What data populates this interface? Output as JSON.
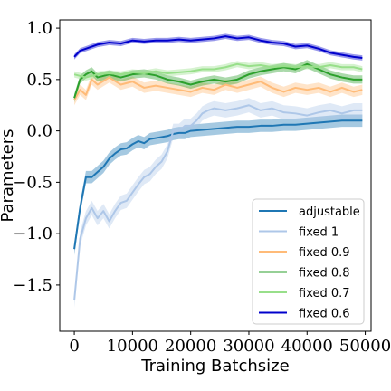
{
  "chart_data": {
    "type": "line",
    "xlabel": "Training Batchsize",
    "ylabel": "Parameters",
    "xlim": [
      -2500,
      51000
    ],
    "ylim": [
      -1.95,
      1.08
    ],
    "x_ticks": [
      0,
      10000,
      20000,
      30000,
      40000,
      50000
    ],
    "x_tick_labels": [
      "0",
      "10000",
      "20000",
      "30000",
      "40000",
      "50000"
    ],
    "y_ticks": [
      -1.5,
      -1.0,
      -0.5,
      0.0,
      0.5,
      1.0
    ],
    "y_tick_labels": [
      "−1.5",
      "−1.0",
      "−0.5",
      "0.0",
      "0.5",
      "1.0"
    ],
    "grid": false,
    "legend_position": "lower-right",
    "series": [
      {
        "name": "adjustable",
        "color": "#1f77b4",
        "band": 0.06,
        "x": [
          0,
          1000,
          2000,
          3000,
          4000,
          5000,
          6000,
          7000,
          8000,
          9000,
          10000,
          11000,
          12000,
          13000,
          14000,
          15000,
          16000,
          17000,
          18000,
          19000,
          20000,
          22000,
          24000,
          26000,
          28000,
          30000,
          32000,
          34000,
          36000,
          38000,
          40000,
          42000,
          44000,
          46000,
          48000,
          49500
        ],
        "y": [
          -1.15,
          -0.75,
          -0.45,
          -0.45,
          -0.4,
          -0.35,
          -0.27,
          -0.22,
          -0.18,
          -0.17,
          -0.13,
          -0.1,
          -0.12,
          -0.08,
          -0.07,
          -0.06,
          -0.05,
          -0.03,
          -0.02,
          -0.02,
          0.0,
          0.01,
          0.02,
          0.03,
          0.04,
          0.04,
          0.05,
          0.05,
          0.06,
          0.06,
          0.07,
          0.08,
          0.09,
          0.1,
          0.1,
          0.1
        ]
      },
      {
        "name": "fixed 1",
        "color": "#aec7e8",
        "band": 0.07,
        "x": [
          0,
          1000,
          2000,
          3000,
          4000,
          5000,
          6000,
          7000,
          8000,
          9000,
          10000,
          11000,
          12000,
          13000,
          14000,
          15000,
          16000,
          17000,
          18000,
          19000,
          20000,
          21000,
          22000,
          23000,
          24000,
          26000,
          28000,
          30000,
          32000,
          34000,
          36000,
          38000,
          40000,
          42000,
          44000,
          46000,
          48000,
          49500
        ],
        "y": [
          -1.65,
          -1.05,
          -0.85,
          -0.75,
          -0.85,
          -0.78,
          -0.88,
          -0.78,
          -0.7,
          -0.68,
          -0.6,
          -0.52,
          -0.45,
          -0.42,
          -0.35,
          -0.3,
          -0.2,
          0.0,
          0.0,
          0.05,
          0.05,
          0.1,
          0.17,
          0.2,
          0.22,
          0.2,
          0.22,
          0.25,
          0.2,
          0.22,
          0.18,
          0.17,
          0.15,
          0.18,
          0.2,
          0.17,
          0.2,
          0.2
        ]
      },
      {
        "name": "fixed 0.9",
        "color": "#ffbb78",
        "band": 0.05,
        "x": [
          0,
          1000,
          2000,
          3000,
          4000,
          6000,
          8000,
          10000,
          12000,
          14000,
          16000,
          18000,
          20000,
          22000,
          24000,
          26000,
          28000,
          30000,
          32000,
          34000,
          36000,
          38000,
          40000,
          42000,
          44000,
          46000,
          48000,
          49500
        ],
        "y": [
          0.3,
          0.4,
          0.35,
          0.5,
          0.45,
          0.52,
          0.45,
          0.48,
          0.42,
          0.44,
          0.42,
          0.4,
          0.38,
          0.42,
          0.4,
          0.45,
          0.42,
          0.45,
          0.48,
          0.42,
          0.38,
          0.42,
          0.4,
          0.42,
          0.38,
          0.42,
          0.38,
          0.4
        ]
      },
      {
        "name": "fixed 0.8",
        "color": "#2ca02c",
        "band": 0.04,
        "x": [
          0,
          1000,
          2000,
          3000,
          4000,
          6000,
          8000,
          10000,
          12000,
          14000,
          16000,
          18000,
          20000,
          22000,
          24000,
          26000,
          28000,
          30000,
          32000,
          34000,
          36000,
          38000,
          40000,
          42000,
          44000,
          46000,
          48000,
          49500
        ],
        "y": [
          0.32,
          0.5,
          0.55,
          0.58,
          0.52,
          0.55,
          0.52,
          0.55,
          0.56,
          0.54,
          0.5,
          0.48,
          0.45,
          0.48,
          0.5,
          0.48,
          0.5,
          0.55,
          0.58,
          0.6,
          0.62,
          0.6,
          0.65,
          0.6,
          0.55,
          0.52,
          0.5,
          0.5
        ]
      },
      {
        "name": "fixed 0.7",
        "color": "#98df8a",
        "band": 0.03,
        "x": [
          0,
          2000,
          4000,
          6000,
          8000,
          10000,
          12000,
          14000,
          16000,
          18000,
          20000,
          22000,
          24000,
          26000,
          28000,
          30000,
          32000,
          34000,
          36000,
          38000,
          40000,
          42000,
          44000,
          46000,
          48000,
          49500
        ],
        "y": [
          0.55,
          0.52,
          0.55,
          0.56,
          0.55,
          0.57,
          0.56,
          0.58,
          0.56,
          0.57,
          0.58,
          0.6,
          0.6,
          0.62,
          0.65,
          0.63,
          0.64,
          0.62,
          0.63,
          0.62,
          0.63,
          0.62,
          0.64,
          0.62,
          0.62,
          0.6
        ]
      },
      {
        "name": "fixed 0.6",
        "color": "#0000cc",
        "band": 0.025,
        "x": [
          0,
          1000,
          2000,
          3000,
          4000,
          6000,
          8000,
          10000,
          12000,
          14000,
          16000,
          18000,
          20000,
          22000,
          24000,
          26000,
          28000,
          30000,
          32000,
          34000,
          36000,
          38000,
          40000,
          42000,
          44000,
          46000,
          48000,
          49500
        ],
        "y": [
          0.72,
          0.78,
          0.8,
          0.82,
          0.84,
          0.86,
          0.85,
          0.88,
          0.87,
          0.88,
          0.88,
          0.89,
          0.88,
          0.89,
          0.9,
          0.92,
          0.9,
          0.91,
          0.88,
          0.86,
          0.85,
          0.82,
          0.83,
          0.8,
          0.76,
          0.74,
          0.72,
          0.71
        ]
      }
    ]
  }
}
